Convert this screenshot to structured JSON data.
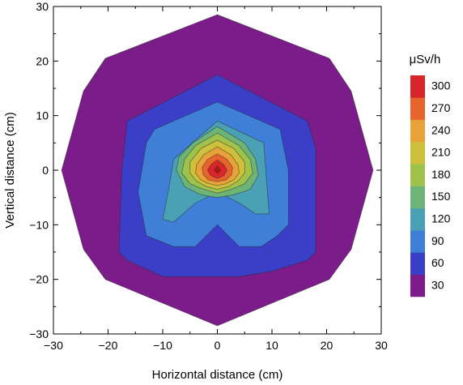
{
  "chart_data": {
    "type": "contour",
    "xlabel": "Horizontal distance (cm)",
    "ylabel": "Vertical distance (cm)",
    "xlim": [
      -30,
      30
    ],
    "ylim": [
      -30,
      30
    ],
    "x_ticks": [
      -30,
      -20,
      -10,
      0,
      10,
      20,
      30
    ],
    "y_ticks": [
      -30,
      -20,
      -10,
      0,
      10,
      20,
      30
    ],
    "grid": false,
    "legend_position": "right",
    "colorbar": {
      "title": "μSv/h",
      "levels": [
        30,
        60,
        90,
        120,
        150,
        180,
        210,
        240,
        270,
        300
      ],
      "colors": [
        "#7b1c8a",
        "#3b3fc8",
        "#3f7fd8",
        "#4aa0b4",
        "#6db576",
        "#9ec24c",
        "#cfc03c",
        "#e9a239",
        "#e7642d",
        "#d9262b"
      ]
    },
    "contours": [
      {
        "level": 0,
        "color": "#7b1c8a",
        "points": [
          [
            0,
            28.5
          ],
          [
            20.5,
            20.5
          ],
          [
            24.5,
            14.5
          ],
          [
            28.5,
            0
          ],
          [
            24.5,
            -14.5
          ],
          [
            20.5,
            -20
          ],
          [
            0,
            -28.5
          ],
          [
            -20.5,
            -20
          ],
          [
            -24.5,
            -14.5
          ],
          [
            -28.5,
            0
          ],
          [
            -24.5,
            14.5
          ],
          [
            -20.5,
            20.5
          ]
        ]
      },
      {
        "level": 30,
        "color": "#3b3fc8",
        "points": [
          [
            0,
            17.5
          ],
          [
            16.5,
            9
          ],
          [
            18,
            4
          ],
          [
            18,
            -15
          ],
          [
            16.5,
            -16.5
          ],
          [
            10,
            -18.5
          ],
          [
            4,
            -19.5
          ],
          [
            0,
            -19.5
          ],
          [
            -4,
            -19.5
          ],
          [
            -10,
            -19.5
          ],
          [
            -16.5,
            -16.5
          ],
          [
            -18,
            -15
          ],
          [
            -17.5,
            0
          ],
          [
            -16.5,
            9
          ]
        ]
      },
      {
        "level": 60,
        "color": "#3f7fd8",
        "points": [
          [
            0,
            12.5
          ],
          [
            11.5,
            7.5
          ],
          [
            13,
            0
          ],
          [
            13,
            -10
          ],
          [
            11,
            -12
          ],
          [
            8,
            -14
          ],
          [
            4,
            -14
          ],
          [
            0,
            -10
          ],
          [
            -4,
            -14
          ],
          [
            -8,
            -14
          ],
          [
            -13,
            -12
          ],
          [
            -14.5,
            -4
          ],
          [
            -13,
            5
          ],
          [
            -11.5,
            7.5
          ]
        ]
      },
      {
        "level": 90,
        "color": "#4aa0b4",
        "points": [
          [
            0,
            9
          ],
          [
            8.5,
            5
          ],
          [
            9,
            -2
          ],
          [
            9.5,
            -8
          ],
          [
            7,
            -8
          ],
          [
            4,
            -6
          ],
          [
            0,
            -4
          ],
          [
            -4,
            -6
          ],
          [
            -8,
            -9.5
          ],
          [
            -10,
            -9
          ],
          [
            -9,
            -4
          ],
          [
            -8,
            2
          ]
        ]
      },
      {
        "level": 120,
        "color": "#6db576",
        "points": [
          [
            0,
            8
          ],
          [
            5,
            5
          ],
          [
            7,
            2
          ],
          [
            7.5,
            -1
          ],
          [
            6,
            -3.5
          ],
          [
            3,
            -4.5
          ],
          [
            0,
            -5
          ],
          [
            -3,
            -4.5
          ],
          [
            -6,
            -3
          ],
          [
            -7.5,
            0
          ],
          [
            -7,
            2.5
          ],
          [
            -4.5,
            5
          ]
        ]
      },
      {
        "level": 150,
        "color": "#9ec24c",
        "points": [
          [
            0,
            6.8
          ],
          [
            4,
            4.5
          ],
          [
            6,
            2
          ],
          [
            6.5,
            -0.5
          ],
          [
            5,
            -2.5
          ],
          [
            2.5,
            -3.5
          ],
          [
            0,
            -4.2
          ],
          [
            -2.5,
            -3.5
          ],
          [
            -5,
            -2.5
          ],
          [
            -6.5,
            -0.5
          ],
          [
            -6,
            2
          ],
          [
            -4,
            4.5
          ]
        ]
      },
      {
        "level": 180,
        "color": "#cfc03c",
        "points": [
          [
            0,
            5.5
          ],
          [
            3,
            4
          ],
          [
            5,
            1.5
          ],
          [
            5,
            -0.5
          ],
          [
            3.8,
            -2
          ],
          [
            2,
            -3
          ],
          [
            0,
            -3.5
          ],
          [
            -2,
            -3
          ],
          [
            -3.8,
            -2
          ],
          [
            -5,
            -0.5
          ],
          [
            -5,
            1.5
          ],
          [
            -3,
            4
          ]
        ]
      },
      {
        "level": 210,
        "color": "#e9a239",
        "points": [
          [
            0,
            4.3
          ],
          [
            2.5,
            2.8
          ],
          [
            3.8,
            1
          ],
          [
            4,
            -0.5
          ],
          [
            3,
            -1.8
          ],
          [
            1.5,
            -2.5
          ],
          [
            0,
            -2.8
          ],
          [
            -1.5,
            -2.5
          ],
          [
            -3,
            -1.8
          ],
          [
            -4,
            -0.5
          ],
          [
            -3.8,
            1
          ],
          [
            -2.5,
            2.8
          ]
        ]
      },
      {
        "level": 240,
        "color": "#e7642d",
        "points": [
          [
            0,
            3
          ],
          [
            1.8,
            2
          ],
          [
            2.8,
            0.5
          ],
          [
            2.6,
            -0.8
          ],
          [
            1.6,
            -1.8
          ],
          [
            0,
            -2.1
          ],
          [
            -1.6,
            -1.8
          ],
          [
            -2.6,
            -0.8
          ],
          [
            -2.8,
            0.5
          ],
          [
            -1.8,
            2
          ]
        ]
      },
      {
        "level": 270,
        "color": "#d9262b",
        "points": [
          [
            0,
            1.9
          ],
          [
            1.2,
            1
          ],
          [
            1.8,
            0
          ],
          [
            1.2,
            -1
          ],
          [
            0,
            -1.5
          ],
          [
            -1.2,
            -1
          ],
          [
            -1.8,
            0
          ],
          [
            -1.2,
            1
          ]
        ]
      },
      {
        "level": 300,
        "color": "#b1160f",
        "points": [
          [
            0,
            0.8
          ],
          [
            0.6,
            0
          ],
          [
            0,
            -0.6
          ],
          [
            -0.6,
            0
          ]
        ]
      }
    ]
  }
}
